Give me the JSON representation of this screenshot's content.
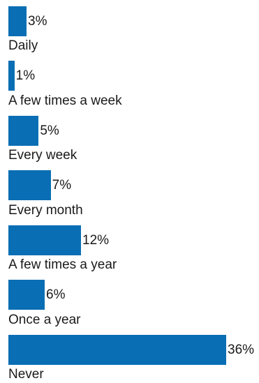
{
  "chart_data": {
    "type": "bar",
    "orientation": "horizontal",
    "categories": [
      "Daily",
      "A few times a week",
      "Every week",
      "Every month",
      "A few times a year",
      "Once a year",
      "Never"
    ],
    "values": [
      3,
      1,
      5,
      7,
      12,
      6,
      36
    ],
    "value_labels": [
      "3%",
      "1%",
      "5%",
      "7%",
      "12%",
      "6%",
      "36%"
    ],
    "xlim": [
      0,
      36
    ],
    "bar_color": "#0a6eb4",
    "grid": false,
    "legend": "none",
    "title": "",
    "xlabel": "",
    "ylabel": ""
  }
}
